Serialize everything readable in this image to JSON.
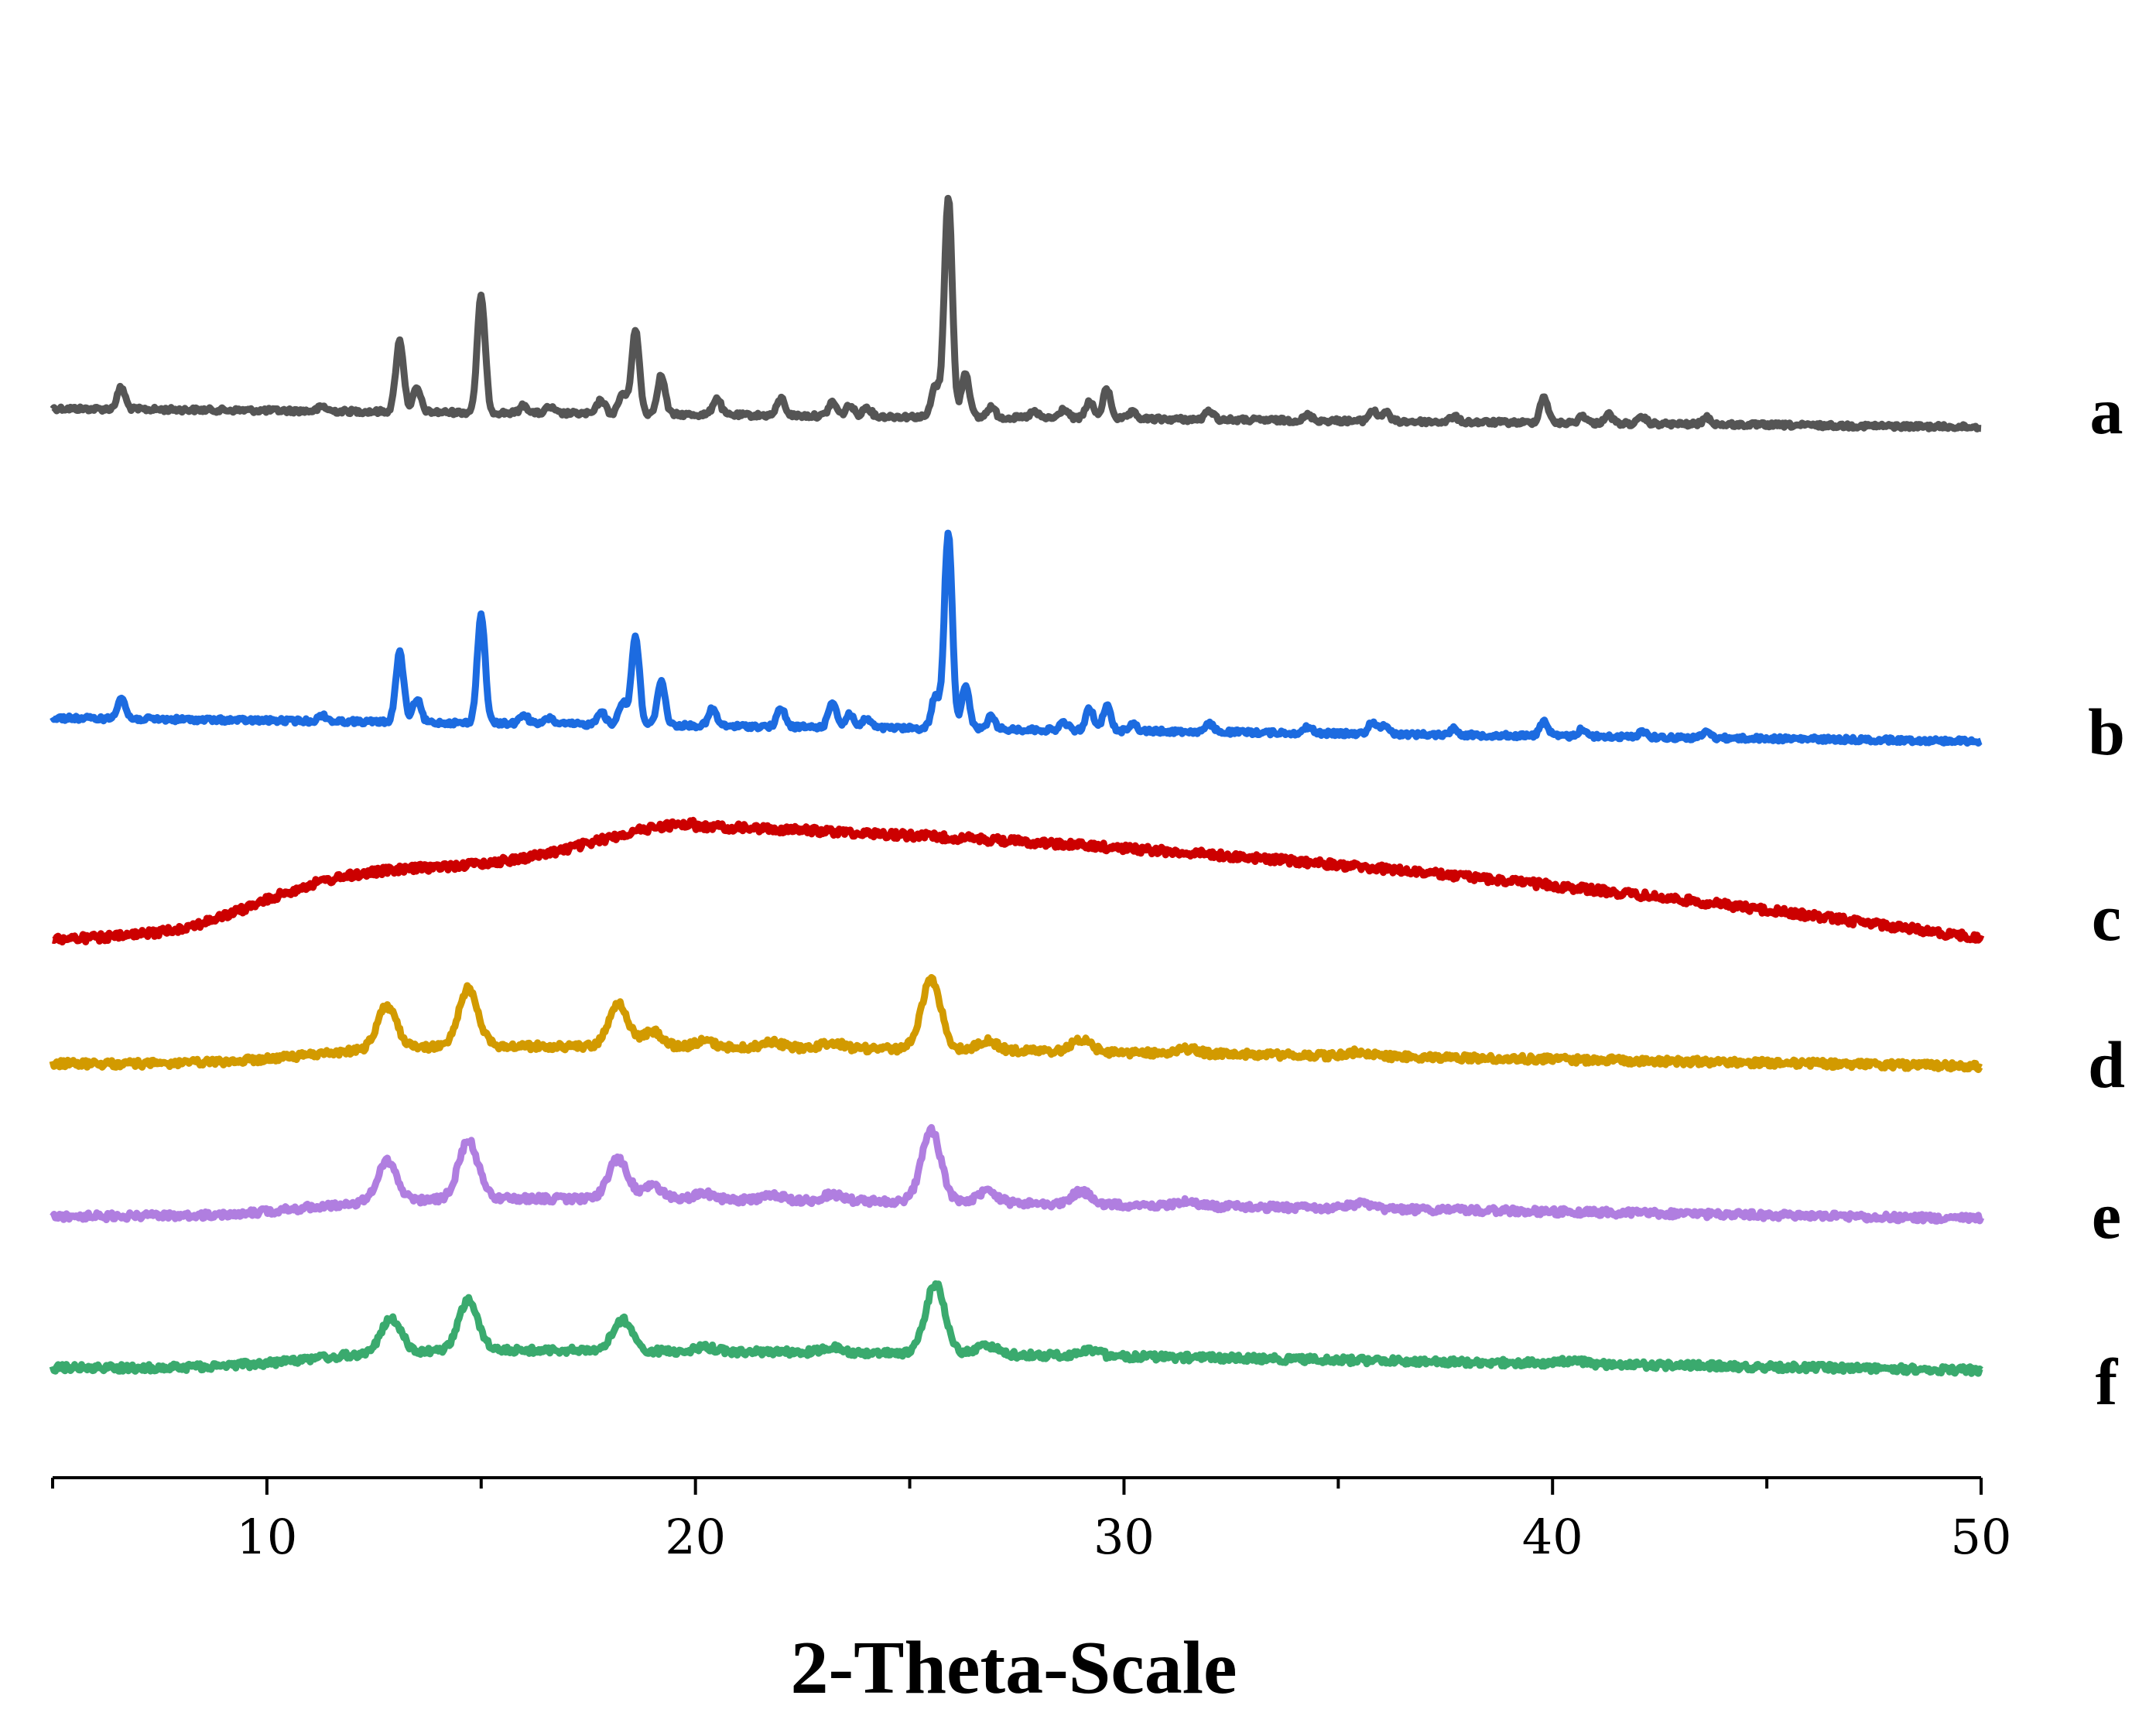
{
  "chart_data": {
    "type": "line",
    "title": "",
    "xlabel": "2-Theta-Scale",
    "ylabel": "",
    "xlim": [
      5,
      50
    ],
    "xticks": [
      10,
      20,
      30,
      40,
      50
    ],
    "grid": false,
    "legend": "labels at right end of each trace",
    "series": [
      {
        "name": "a",
        "color": "#555555",
        "peaks": [
          [
            6.6,
            28
          ],
          [
            11.3,
            6
          ],
          [
            13.1,
            92
          ],
          [
            13.5,
            30
          ],
          [
            15.0,
            150
          ],
          [
            16.0,
            10
          ],
          [
            16.6,
            8
          ],
          [
            17.8,
            18
          ],
          [
            18.3,
            26
          ],
          [
            18.6,
            108
          ],
          [
            19.2,
            50
          ],
          [
            20.5,
            22
          ],
          [
            22.0,
            22
          ],
          [
            23.2,
            18
          ],
          [
            23.6,
            14
          ],
          [
            24.0,
            12
          ],
          [
            25.6,
            40
          ],
          [
            25.9,
            285
          ],
          [
            26.3,
            58
          ],
          [
            26.9,
            14
          ],
          [
            27.9,
            8
          ],
          [
            28.6,
            12
          ],
          [
            29.2,
            22
          ],
          [
            29.6,
            38
          ],
          [
            30.2,
            8
          ],
          [
            32.0,
            12
          ],
          [
            34.3,
            7
          ],
          [
            35.8,
            14
          ],
          [
            36.1,
            12
          ],
          [
            37.7,
            7
          ],
          [
            39.8,
            34
          ],
          [
            40.7,
            10
          ],
          [
            41.3,
            12
          ],
          [
            42.1,
            8
          ],
          [
            43.6,
            9
          ]
        ]
      },
      {
        "name": "b",
        "color": "#1c6be0",
        "peaks": [
          [
            6.6,
            28
          ],
          [
            11.3,
            8
          ],
          [
            13.1,
            90
          ],
          [
            13.5,
            30
          ],
          [
            15.0,
            140
          ],
          [
            16.0,
            12
          ],
          [
            16.6,
            8
          ],
          [
            17.8,
            18
          ],
          [
            18.3,
            30
          ],
          [
            18.6,
            115
          ],
          [
            19.2,
            58
          ],
          [
            20.4,
            22
          ],
          [
            22.0,
            24
          ],
          [
            23.2,
            34
          ],
          [
            23.6,
            18
          ],
          [
            24.0,
            12
          ],
          [
            25.6,
            42
          ],
          [
            25.9,
            255
          ],
          [
            26.3,
            55
          ],
          [
            26.9,
            16
          ],
          [
            28.6,
            10
          ],
          [
            29.2,
            28
          ],
          [
            29.6,
            32
          ],
          [
            30.2,
            10
          ],
          [
            32.0,
            10
          ],
          [
            34.3,
            8
          ],
          [
            35.8,
            16
          ],
          [
            36.1,
            12
          ],
          [
            37.7,
            8
          ],
          [
            39.8,
            20
          ],
          [
            40.7,
            10
          ],
          [
            42.1,
            8
          ],
          [
            43.6,
            8
          ]
        ]
      },
      {
        "name": "c",
        "color": "#cc0000",
        "peaks": []
      },
      {
        "name": "d",
        "color": "#d29a00",
        "peaks": [
          [
            12.8,
            55
          ],
          [
            14.7,
            75
          ],
          [
            18.2,
            55
          ],
          [
            19.0,
            20
          ],
          [
            20.2,
            8
          ],
          [
            21.8,
            8
          ],
          [
            23.2,
            8
          ],
          [
            25.5,
            90
          ],
          [
            26.8,
            12
          ],
          [
            29.0,
            15
          ],
          [
            31.5,
            6
          ],
          [
            35.5,
            6
          ]
        ]
      },
      {
        "name": "e",
        "color": "#b07ee0",
        "peaks": [
          [
            12.8,
            52
          ],
          [
            14.7,
            75
          ],
          [
            18.2,
            52
          ],
          [
            19.0,
            18
          ],
          [
            20.2,
            8
          ],
          [
            21.8,
            8
          ],
          [
            23.2,
            8
          ],
          [
            25.5,
            92
          ],
          [
            26.8,
            14
          ],
          [
            29.0,
            16
          ],
          [
            31.5,
            6
          ],
          [
            35.5,
            6
          ]
        ]
      },
      {
        "name": "f",
        "color": "#3aaa6e",
        "peaks": [
          [
            12.9,
            45
          ],
          [
            14.7,
            65
          ],
          [
            18.3,
            40
          ],
          [
            20.2,
            6
          ],
          [
            23.2,
            6
          ],
          [
            25.6,
            90
          ],
          [
            26.8,
            12
          ],
          [
            29.2,
            8
          ],
          [
            40.5,
            5
          ]
        ]
      }
    ]
  }
}
